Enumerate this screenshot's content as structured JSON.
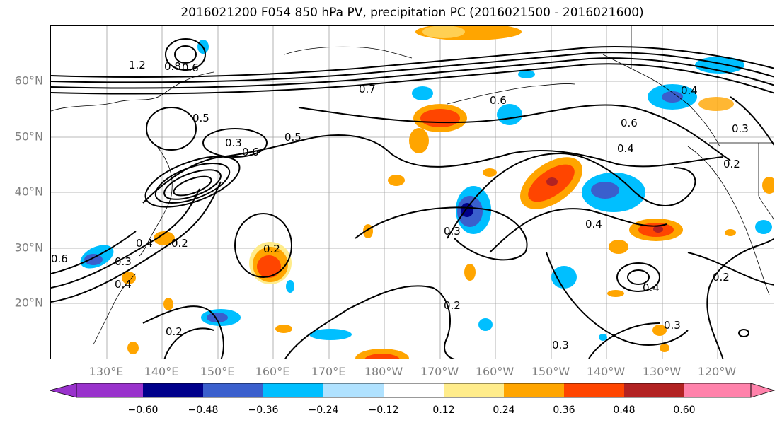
{
  "title": "2016021200 F054 850 hPa PV, precipitation PC (2016021500 - 2016021600)",
  "lat_labels": [
    "60°N",
    "50°N",
    "40°N",
    "30°N",
    "20°N"
  ],
  "lon_labels": [
    "130°E",
    "140°E",
    "150°E",
    "160°E",
    "170°E",
    "180°W",
    "170°W",
    "160°W",
    "150°W",
    "140°W",
    "130°W",
    "120°W"
  ],
  "contour_labels": [
    "1.2",
    "0.8",
    "0.6",
    "0.7",
    "0.5",
    "0.3",
    "0.6",
    "0.5",
    "0.6",
    "0.4",
    "0.2",
    "0.3",
    "0.4",
    "0.2",
    "0.3",
    "0.2",
    "0.2",
    "0.3",
    "0.2",
    "0.4",
    "0.3",
    "0.2",
    "0.4",
    "0.6",
    "0.6",
    "0.4",
    "0.3",
    "0.4"
  ],
  "colorbar": {
    "tick_labels": [
      "−0.60",
      "−0.48",
      "−0.36",
      "−0.24",
      "−0.12",
      "0.12",
      "0.24",
      "0.36",
      "0.48",
      "0.60"
    ],
    "colors": [
      "#9932CC",
      "#00008B",
      "#3A5FCD",
      "#00BFFF",
      "#B0E2FF",
      "#FFFFFF",
      "#FFEC8B",
      "#FFA500",
      "#FF4500",
      "#B22222",
      "#FF82AB"
    ]
  },
  "colors": {
    "grid": "#a0a0a0",
    "contour": "#000000",
    "axis_label": "#808080"
  }
}
